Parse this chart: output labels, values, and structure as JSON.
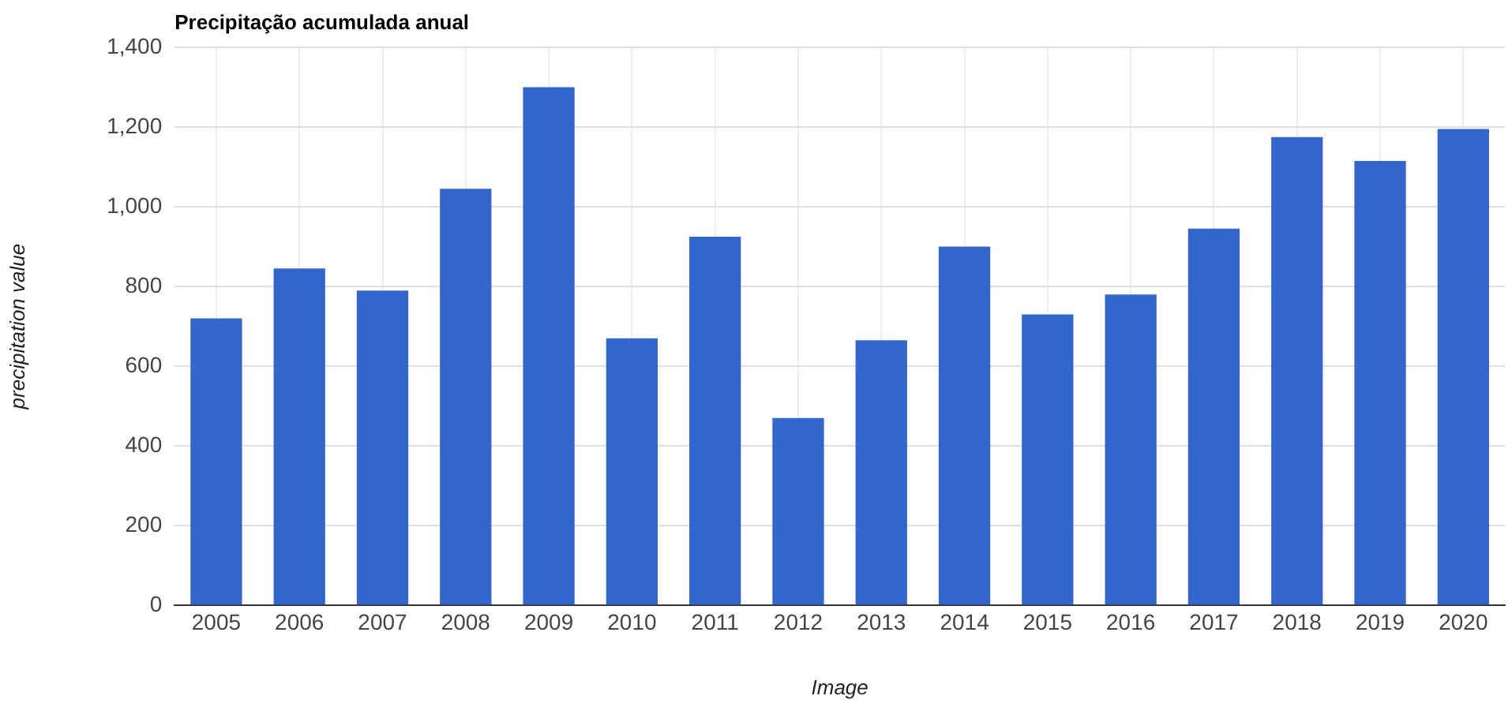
{
  "chart_data": {
    "type": "bar",
    "title": "Precipitação acumulada anual",
    "xlabel": "Image",
    "ylabel": "precipitation value",
    "categories": [
      "2005",
      "2006",
      "2007",
      "2008",
      "2009",
      "2010",
      "2011",
      "2012",
      "2013",
      "2014",
      "2015",
      "2016",
      "2017",
      "2018",
      "2019",
      "2020"
    ],
    "values": [
      720,
      845,
      790,
      1045,
      1300,
      670,
      925,
      470,
      665,
      900,
      730,
      780,
      945,
      1175,
      1115,
      1195
    ],
    "color": "#3366cc",
    "ylim": [
      0,
      1400
    ],
    "yticks": [
      0,
      200,
      400,
      600,
      800,
      {
        "value": 1000,
        "label": "1,000"
      },
      {
        "value": 1200,
        "label": "1,200"
      },
      {
        "value": 1400,
        "label": "1,400"
      }
    ],
    "grid": true
  }
}
